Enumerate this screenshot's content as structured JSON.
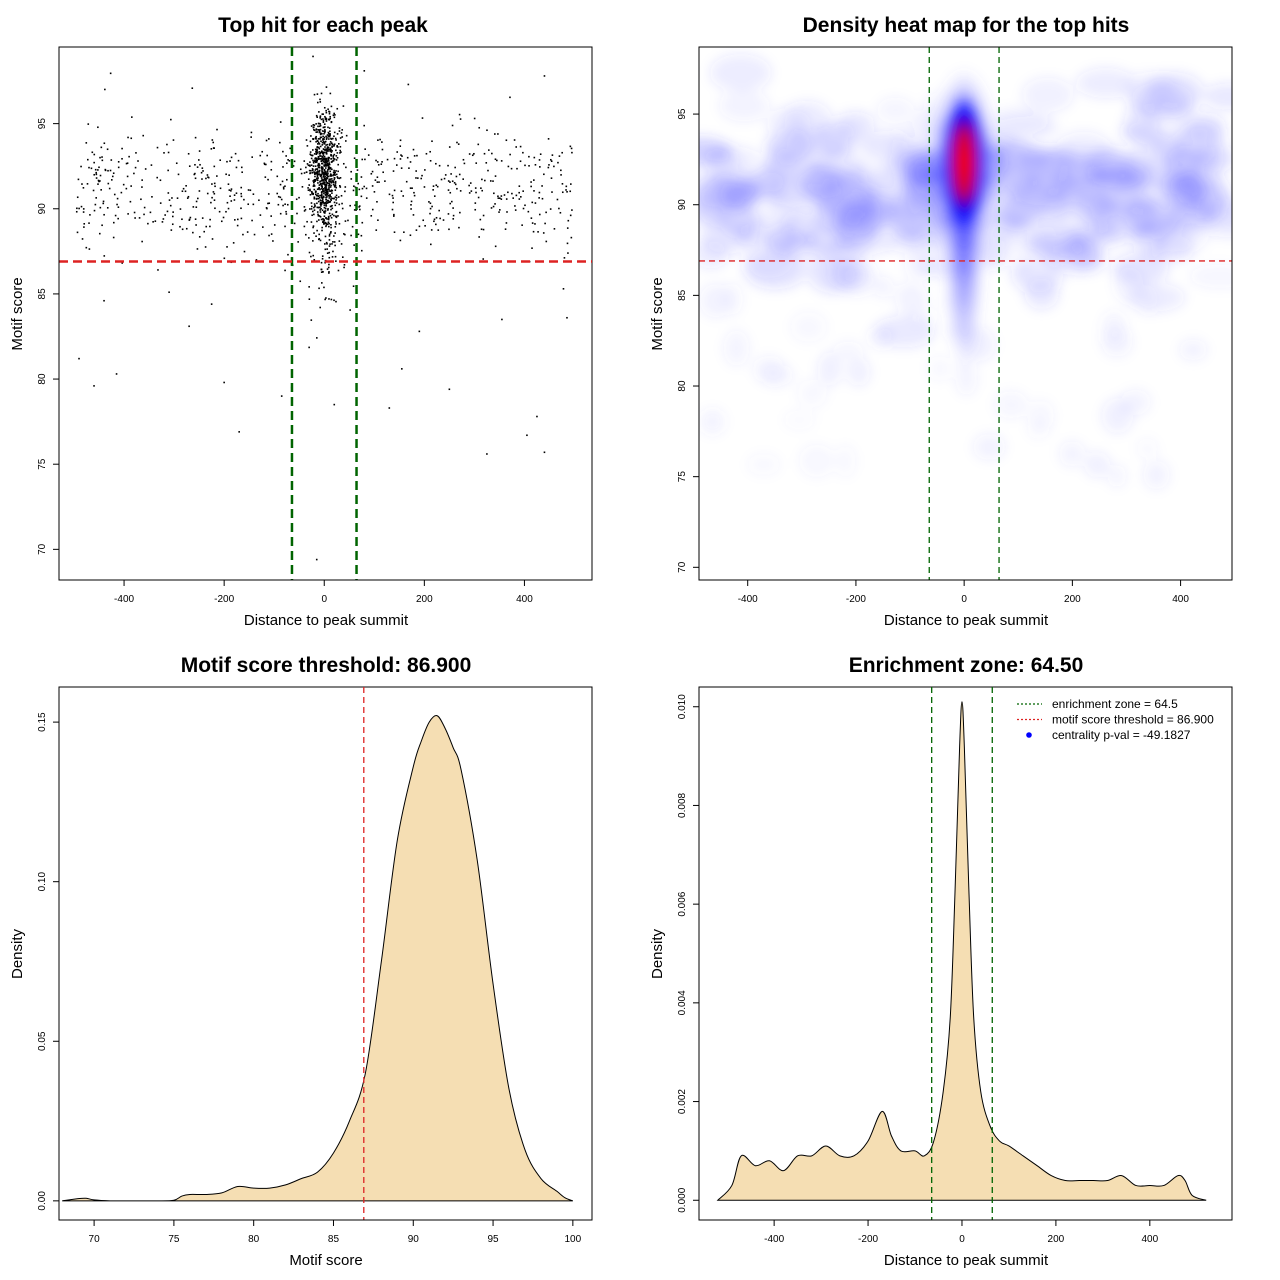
{
  "chart_data": [
    {
      "type": "scatter",
      "title": "Top hit for each peak",
      "xlabel": "Distance to peak summit",
      "ylabel": "Motif score",
      "xlim": [
        -530,
        535
      ],
      "ylim": [
        68.2,
        99.5
      ],
      "xticks": [
        -400,
        -200,
        0,
        200,
        400
      ],
      "yticks": [
        70,
        75,
        80,
        85,
        90,
        95
      ],
      "vlines": [
        -64.5,
        64.5
      ],
      "hline": 86.9,
      "line_colors": {
        "vertical": "#006400",
        "horizontal": "#dd2222"
      },
      "points_note_seed": 11,
      "outliers": [
        {
          "x": -440,
          "y": 84.6
        },
        {
          "x": -460,
          "y": 79.6
        },
        {
          "x": -415,
          "y": 80.3
        },
        {
          "x": -170,
          "y": 76.9
        },
        {
          "x": -200,
          "y": 79.8
        },
        {
          "x": -225,
          "y": 84.4
        },
        {
          "x": -270,
          "y": 83.1
        },
        {
          "x": -310,
          "y": 85.1
        },
        {
          "x": -490,
          "y": 81.2
        },
        {
          "x": -85,
          "y": 79.0
        },
        {
          "x": -65,
          "y": 79.5
        },
        {
          "x": 20,
          "y": 78.5
        },
        {
          "x": -15,
          "y": 69.4
        },
        {
          "x": 130,
          "y": 78.3
        },
        {
          "x": 155,
          "y": 80.6
        },
        {
          "x": 190,
          "y": 82.8
        },
        {
          "x": 250,
          "y": 79.4
        },
        {
          "x": 355,
          "y": 83.5
        },
        {
          "x": 325,
          "y": 75.6
        },
        {
          "x": 405,
          "y": 76.7
        },
        {
          "x": 425,
          "y": 77.8
        },
        {
          "x": 440,
          "y": 75.7
        },
        {
          "x": 440,
          "y": 97.8
        },
        {
          "x": 478,
          "y": 85.3
        },
        {
          "x": 485,
          "y": 83.6
        },
        {
          "x": 168,
          "y": 97.3
        },
        {
          "x": 80,
          "y": 98.1
        }
      ]
    },
    {
      "type": "heatmap",
      "title": "Density heat map for the top hits",
      "xlabel": "Distance to peak summit",
      "ylabel": "Motif score",
      "xlim": [
        -490,
        495
      ],
      "ylim": [
        69.3,
        98.7
      ],
      "xticks": [
        -400,
        -200,
        0,
        200,
        400
      ],
      "yticks": [
        70,
        75,
        80,
        85,
        90,
        95
      ],
      "vlines": [
        -64.5,
        64.5
      ],
      "hline": 86.9,
      "colorscale": [
        "#ffffff",
        "#0000ff",
        "#ff0000"
      ],
      "hotspot": {
        "x": 0,
        "y": 92.3
      }
    },
    {
      "type": "area",
      "title": "Motif score threshold: 86.900",
      "xlabel": "Motif score",
      "ylabel": "Density",
      "xlim": [
        67.8,
        101.2
      ],
      "ylim": [
        -0.006,
        0.161
      ],
      "xticks": [
        70,
        75,
        80,
        85,
        90,
        95,
        100
      ],
      "yticks": [
        0.0,
        0.05,
        0.1,
        0.15
      ],
      "ytick_labels": [
        "0.00",
        "0.05",
        "0.10",
        "0.15"
      ],
      "vline": 86.9,
      "fill": "#f5deb3",
      "x": [
        68,
        69,
        69.5,
        70,
        71,
        72,
        73,
        74,
        75,
        75.5,
        76,
        77,
        78,
        79,
        80,
        81,
        82,
        83,
        84,
        85,
        86,
        87,
        88,
        89,
        90,
        90.5,
        91,
        91.5,
        92,
        92.5,
        93,
        94,
        95,
        96,
        97,
        98,
        99,
        99.5,
        100
      ],
      "y": [
        0.0,
        0.0007,
        0.0008,
        0.0003,
        0.0,
        0.0,
        0.0,
        0.0,
        0.0002,
        0.0015,
        0.002,
        0.002,
        0.0025,
        0.0045,
        0.004,
        0.004,
        0.005,
        0.007,
        0.009,
        0.015,
        0.025,
        0.04,
        0.075,
        0.113,
        0.136,
        0.144,
        0.15,
        0.152,
        0.148,
        0.142,
        0.135,
        0.107,
        0.068,
        0.035,
        0.016,
        0.007,
        0.003,
        0.001,
        0.0
      ]
    },
    {
      "type": "area",
      "title": "Enrichment zone: 64.50",
      "xlabel": "Distance to peak summit",
      "ylabel": "Density",
      "xlim": [
        -560,
        575
      ],
      "ylim": [
        -0.0004,
        0.0104
      ],
      "xticks": [
        -400,
        -200,
        0,
        200,
        400
      ],
      "yticks": [
        0.0,
        0.002,
        0.004,
        0.006,
        0.008,
        0.01
      ],
      "ytick_labels": [
        "0.000",
        "0.002",
        "0.004",
        "0.006",
        "0.008",
        "0.010"
      ],
      "vlines": [
        -64.5,
        64.5
      ],
      "fill": "#f5deb3",
      "legend": [
        {
          "label": "enrichment zone = 64.5",
          "color": "#006400",
          "kind": "line"
        },
        {
          "label": "motif score threshold = 86.900",
          "color": "#dd2222",
          "kind": "line"
        },
        {
          "label": "centrality p-val = -49.1827",
          "color": "#0000ff",
          "kind": "point"
        }
      ],
      "x": [
        -520,
        -490,
        -470,
        -440,
        -410,
        -380,
        -350,
        -320,
        -290,
        -260,
        -230,
        -200,
        -170,
        -150,
        -130,
        -100,
        -80,
        -60,
        -40,
        -25,
        -15,
        -5,
        0,
        5,
        15,
        25,
        40,
        60,
        80,
        100,
        130,
        160,
        190,
        220,
        250,
        280,
        310,
        340,
        370,
        400,
        430,
        460,
        475,
        490,
        520
      ],
      "y": [
        0.0,
        0.0003,
        0.0009,
        0.0007,
        0.0008,
        0.0006,
        0.0009,
        0.0009,
        0.0011,
        0.0009,
        0.0009,
        0.0012,
        0.0018,
        0.0013,
        0.001,
        0.001,
        0.0009,
        0.0012,
        0.0022,
        0.0037,
        0.0062,
        0.0092,
        0.0101,
        0.0092,
        0.0062,
        0.0037,
        0.0022,
        0.0015,
        0.0012,
        0.0011,
        0.0009,
        0.0007,
        0.0005,
        0.0004,
        0.0004,
        0.0004,
        0.0004,
        0.0005,
        0.0003,
        0.0003,
        0.0003,
        0.0005,
        0.0004,
        0.0001,
        0.0
      ]
    }
  ]
}
